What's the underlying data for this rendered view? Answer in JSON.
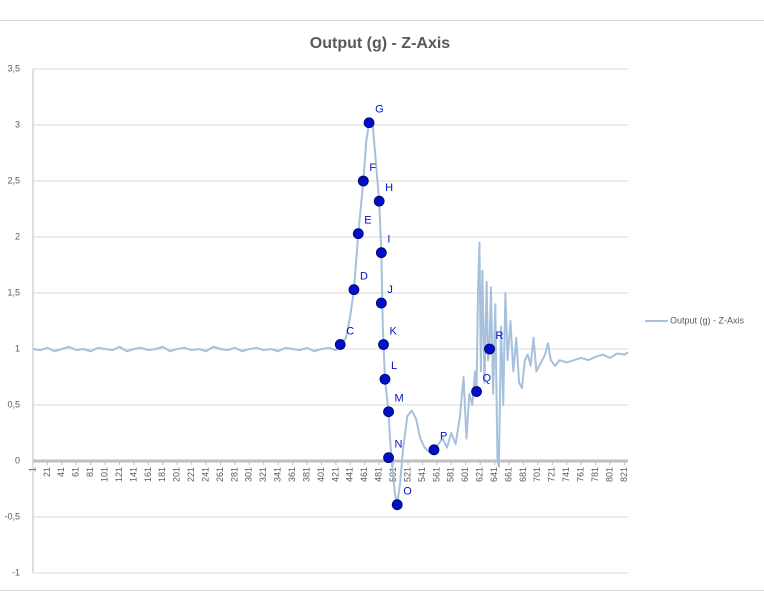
{
  "chart_data": {
    "type": "line",
    "title": "Output (g) - Z-Axis",
    "x": [
      1,
      11,
      21,
      31,
      41,
      51,
      61,
      71,
      81,
      91,
      101,
      111,
      121,
      131,
      141,
      151,
      161,
      171,
      181,
      191,
      201,
      211,
      221,
      231,
      241,
      251,
      261,
      271,
      281,
      291,
      301,
      311,
      321,
      331,
      341,
      351,
      361,
      371,
      381,
      391,
      401,
      411,
      421,
      427,
      435,
      441,
      446,
      452,
      459,
      463,
      467,
      472,
      476,
      481,
      484,
      486,
      487,
      489,
      494,
      496,
      498,
      503,
      506,
      510,
      514,
      520,
      526,
      532,
      538,
      544,
      550,
      557,
      563,
      569,
      575,
      581,
      587,
      593,
      598,
      602,
      606,
      610,
      614,
      616,
      618,
      620,
      622,
      624,
      627,
      630,
      632,
      634,
      636,
      639,
      642,
      645,
      647,
      650,
      653,
      656,
      659,
      663,
      667,
      671,
      675,
      679,
      683,
      687,
      691,
      695,
      699,
      703,
      707,
      711,
      715,
      719,
      725,
      731,
      741,
      751,
      761,
      771,
      781,
      791,
      801,
      811,
      821,
      826
    ],
    "series": [
      {
        "name": "Output (g) - Z-Axis",
        "color": "#a7c0dc",
        "values": [
          1.0,
          0.99,
          1.01,
          0.98,
          1.0,
          1.02,
          0.99,
          1.0,
          0.98,
          1.01,
          1.0,
          0.99,
          1.02,
          0.98,
          1.0,
          1.01,
          0.99,
          1.0,
          1.02,
          0.98,
          1.0,
          1.01,
          0.99,
          1.0,
          0.98,
          1.02,
          1.0,
          0.99,
          1.01,
          0.98,
          1.0,
          1.01,
          0.99,
          1.0,
          0.98,
          1.01,
          1.0,
          0.99,
          1.01,
          0.98,
          1.0,
          1.01,
          0.99,
          1.04,
          1.1,
          1.3,
          1.53,
          2.03,
          2.5,
          2.85,
          3.02,
          3.0,
          2.7,
          2.32,
          1.86,
          1.2,
          1.04,
          0.73,
          0.44,
          0.2,
          0.03,
          -0.3,
          -0.39,
          -0.2,
          0.1,
          0.4,
          0.45,
          0.38,
          0.2,
          0.12,
          0.08,
          0.1,
          0.15,
          0.2,
          0.12,
          0.25,
          0.15,
          0.4,
          0.75,
          0.2,
          0.6,
          0.5,
          0.8,
          0.62,
          1.5,
          1.95,
          0.8,
          1.7,
          0.7,
          1.6,
          0.9,
          1.0,
          1.55,
          0.6,
          1.4,
          0.0,
          -0.05,
          1.2,
          0.5,
          1.5,
          0.9,
          1.25,
          0.8,
          1.1,
          0.7,
          0.65,
          0.9,
          0.95,
          0.85,
          1.1,
          0.8,
          0.85,
          0.9,
          0.95,
          1.05,
          0.9,
          0.85,
          0.9,
          0.88,
          0.9,
          0.92,
          0.9,
          0.93,
          0.95,
          0.92,
          0.96,
          0.95,
          0.97
        ]
      }
    ],
    "annotations": [
      {
        "label": "C",
        "x": 427,
        "y": 1.04
      },
      {
        "label": "D",
        "x": 446,
        "y": 1.53
      },
      {
        "label": "E",
        "x": 452,
        "y": 2.03
      },
      {
        "label": "F",
        "x": 459,
        "y": 2.5
      },
      {
        "label": "G",
        "x": 467,
        "y": 3.02
      },
      {
        "label": "H",
        "x": 481,
        "y": 2.32
      },
      {
        "label": "I",
        "x": 484,
        "y": 1.86
      },
      {
        "label": "J",
        "x": 484,
        "y": 1.41
      },
      {
        "label": "K",
        "x": 487,
        "y": 1.04
      },
      {
        "label": "L",
        "x": 489,
        "y": 0.73
      },
      {
        "label": "M",
        "x": 494,
        "y": 0.44
      },
      {
        "label": "N",
        "x": 494,
        "y": 0.03
      },
      {
        "label": "O",
        "x": 506,
        "y": -0.39
      },
      {
        "label": "P",
        "x": 557,
        "y": 0.1
      },
      {
        "label": "Q",
        "x": 616,
        "y": 0.62
      },
      {
        "label": "R",
        "x": 634,
        "y": 1.0
      }
    ],
    "marker_color": "#0010c8",
    "xlim": [
      1,
      826
    ],
    "ylim": [
      -1,
      3.5
    ],
    "xticks": [
      1,
      21,
      41,
      61,
      81,
      101,
      121,
      141,
      161,
      181,
      201,
      221,
      241,
      261,
      281,
      301,
      321,
      341,
      361,
      381,
      401,
      421,
      441,
      461,
      481,
      501,
      521,
      541,
      561,
      581,
      601,
      621,
      641,
      661,
      681,
      701,
      721,
      741,
      761,
      781,
      801,
      821
    ],
    "yticks": [
      {
        "value": 3.5,
        "label": "3,5"
      },
      3,
      {
        "value": 2.5,
        "label": "2,5"
      },
      2,
      {
        "value": 1.5,
        "label": "1,5"
      },
      1,
      {
        "value": 0.5,
        "label": "0,5"
      },
      0,
      {
        "value": -0.5,
        "label": "-0,5"
      },
      -1
    ],
    "grid": true,
    "legend": "right"
  }
}
